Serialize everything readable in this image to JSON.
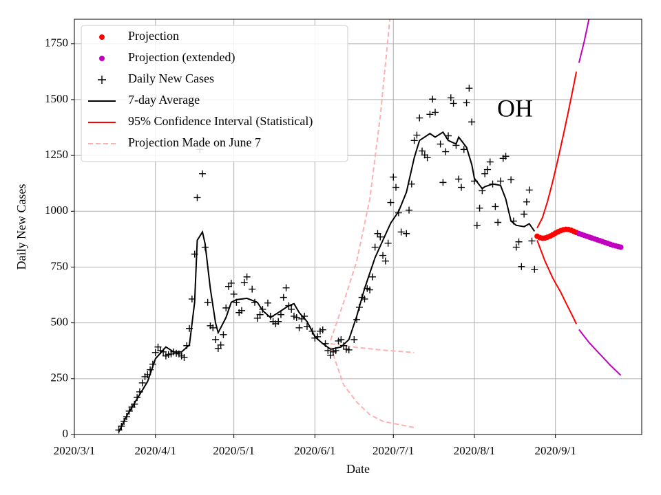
{
  "chart_data": {
    "type": "line",
    "annotation": "OH",
    "x_label": "Date",
    "y_label": "Daily New Cases",
    "xlim": [
      "2020-03-01",
      "2020-10-04"
    ],
    "xticks": [
      {
        "value": "2020-03-01",
        "label": "2020/3/1"
      },
      {
        "value": "2020-04-01",
        "label": "2020/4/1"
      },
      {
        "value": "2020-05-01",
        "label": "2020/5/1"
      },
      {
        "value": "2020-06-01",
        "label": "2020/6/1"
      },
      {
        "value": "2020-07-01",
        "label": "2020/7/1"
      },
      {
        "value": "2020-08-01",
        "label": "2020/8/1"
      },
      {
        "value": "2020-09-01",
        "label": "2020/9/1"
      }
    ],
    "ylim": [
      0,
      1860
    ],
    "yticks": [
      0,
      250,
      500,
      750,
      1000,
      1250,
      1500,
      1750
    ],
    "grid": true,
    "legend": "upper left",
    "series": [
      {
        "name": "Projection",
        "style": "dots",
        "color": "#ff0000",
        "x": [
          "2020-08-25",
          "2020-08-26",
          "2020-08-27",
          "2020-08-28",
          "2020-08-29",
          "2020-08-30",
          "2020-08-31",
          "2020-09-01",
          "2020-09-02",
          "2020-09-03",
          "2020-09-04",
          "2020-09-05",
          "2020-09-06",
          "2020-09-07",
          "2020-09-08",
          "2020-09-09"
        ],
        "values": [
          888,
          882,
          879,
          880,
          884,
          889,
          895,
          902,
          908,
          913,
          917,
          919,
          918,
          915,
          910,
          905
        ]
      },
      {
        "name": "Projection (extended)",
        "style": "dots",
        "color": "#bf00bf",
        "x": [
          "2020-09-10",
          "2020-09-11",
          "2020-09-12",
          "2020-09-13",
          "2020-09-14",
          "2020-09-15",
          "2020-09-16",
          "2020-09-17",
          "2020-09-18",
          "2020-09-19",
          "2020-09-20",
          "2020-09-21",
          "2020-09-22",
          "2020-09-23",
          "2020-09-24",
          "2020-09-25",
          "2020-09-26"
        ],
        "values": [
          900,
          896,
          892,
          888,
          884,
          880,
          876,
          872,
          868,
          864,
          860,
          856,
          852,
          848,
          845,
          842,
          839
        ]
      },
      {
        "name": "Daily New Cases",
        "style": "plus",
        "color": "#000000",
        "x": [
          "2020-03-18",
          "2020-03-19",
          "2020-03-20",
          "2020-03-21",
          "2020-03-22",
          "2020-03-23",
          "2020-03-24",
          "2020-03-25",
          "2020-03-26",
          "2020-03-27",
          "2020-03-28",
          "2020-03-29",
          "2020-03-30",
          "2020-03-31",
          "2020-04-01",
          "2020-04-02",
          "2020-04-03",
          "2020-04-04",
          "2020-04-05",
          "2020-04-06",
          "2020-04-07",
          "2020-04-08",
          "2020-04-09",
          "2020-04-10",
          "2020-04-11",
          "2020-04-12",
          "2020-04-13",
          "2020-04-14",
          "2020-04-15",
          "2020-04-16",
          "2020-04-17",
          "2020-04-18",
          "2020-04-19",
          "2020-04-20",
          "2020-04-21",
          "2020-04-22",
          "2020-04-23",
          "2020-04-24",
          "2020-04-25",
          "2020-04-26",
          "2020-04-27",
          "2020-04-28",
          "2020-04-29",
          "2020-04-30",
          "2020-05-01",
          "2020-05-02",
          "2020-05-03",
          "2020-05-04",
          "2020-05-05",
          "2020-05-06",
          "2020-05-08",
          "2020-05-09",
          "2020-05-10",
          "2020-05-11",
          "2020-05-12",
          "2020-05-14",
          "2020-05-15",
          "2020-05-16",
          "2020-05-17",
          "2020-05-18",
          "2020-05-19",
          "2020-05-20",
          "2020-05-21",
          "2020-05-22",
          "2020-05-23",
          "2020-05-24",
          "2020-05-25",
          "2020-05-26",
          "2020-05-27",
          "2020-05-28",
          "2020-05-29",
          "2020-05-31",
          "2020-06-01",
          "2020-06-02",
          "2020-06-03",
          "2020-06-04",
          "2020-06-05",
          "2020-06-06",
          "2020-06-07",
          "2020-06-08",
          "2020-06-09",
          "2020-06-10",
          "2020-06-11",
          "2020-06-12",
          "2020-06-13",
          "2020-06-14",
          "2020-06-16",
          "2020-06-17",
          "2020-06-18",
          "2020-06-19",
          "2020-06-20",
          "2020-06-21",
          "2020-06-22",
          "2020-06-23",
          "2020-06-24",
          "2020-06-25",
          "2020-06-26",
          "2020-06-27",
          "2020-06-28",
          "2020-06-29",
          "2020-06-30",
          "2020-07-01",
          "2020-07-02",
          "2020-07-03",
          "2020-07-04",
          "2020-07-06",
          "2020-07-07",
          "2020-07-08",
          "2020-07-09",
          "2020-07-10",
          "2020-07-11",
          "2020-07-12",
          "2020-07-13",
          "2020-07-14",
          "2020-07-15",
          "2020-07-16",
          "2020-07-17",
          "2020-07-19",
          "2020-07-20",
          "2020-07-21",
          "2020-07-22",
          "2020-07-23",
          "2020-07-24",
          "2020-07-25",
          "2020-07-26",
          "2020-07-27",
          "2020-07-28",
          "2020-07-29",
          "2020-07-30",
          "2020-07-31",
          "2020-08-01",
          "2020-08-02",
          "2020-08-03",
          "2020-08-04",
          "2020-08-05",
          "2020-08-06",
          "2020-08-07",
          "2020-08-08",
          "2020-08-09",
          "2020-08-10",
          "2020-08-11",
          "2020-08-12",
          "2020-08-13",
          "2020-08-15",
          "2020-08-16",
          "2020-08-17",
          "2020-08-18",
          "2020-08-19",
          "2020-08-20",
          "2020-08-21",
          "2020-08-22",
          "2020-08-23",
          "2020-08-24"
        ],
        "values": [
          20,
          37,
          59,
          80,
          105,
          123,
          136,
          166,
          191,
          231,
          259,
          268,
          290,
          315,
          367,
          392,
          376,
          370,
          352,
          358,
          361,
          370,
          364,
          361,
          352,
          345,
          398,
          475,
          607,
          808,
          1061,
          1277,
          1168,
          839,
          592,
          487,
          478,
          425,
          385,
          401,
          447,
          567,
          663,
          678,
          629,
          592,
          546,
          555,
          681,
          706,
          651,
          592,
          521,
          537,
          561,
          589,
          530,
          506,
          496,
          506,
          537,
          614,
          657,
          577,
          561,
          530,
          524,
          478,
          518,
          530,
          484,
          463,
          432,
          438,
          463,
          469,
          407,
          376,
          355,
          370,
          376,
          419,
          425,
          398,
          382,
          379,
          425,
          515,
          570,
          614,
          607,
          654,
          648,
          706,
          839,
          900,
          885,
          802,
          777,
          857,
          1039,
          1153,
          1107,
          993,
          907,
          900,
          1005,
          1122,
          1317,
          1341,
          1418,
          1270,
          1252,
          1240,
          1434,
          1502,
          1443,
          1301,
          1129,
          1267,
          1338,
          1508,
          1483,
          1295,
          1144,
          1107,
          1277,
          1486,
          1551,
          1400,
          1135,
          937,
          1014,
          1092,
          1168,
          1187,
          1221,
          1122,
          1021,
          950,
          1135,
          1237,
          1246,
          1141,
          956,
          839,
          863,
          752,
          987,
          1042,
          1095,
          867,
          740
        ]
      },
      {
        "name": "7-day Average",
        "style": "line",
        "color": "#000000",
        "x": [
          "2020-03-18",
          "2020-03-21",
          "2020-03-25",
          "2020-03-29",
          "2020-04-01",
          "2020-04-05",
          "2020-04-08",
          "2020-04-11",
          "2020-04-14",
          "2020-04-16",
          "2020-04-17",
          "2020-04-19",
          "2020-04-20",
          "2020-04-22",
          "2020-04-24",
          "2020-04-25",
          "2020-04-28",
          "2020-04-30",
          "2020-05-02",
          "2020-05-06",
          "2020-05-10",
          "2020-05-12",
          "2020-05-15",
          "2020-05-18",
          "2020-05-22",
          "2020-05-24",
          "2020-05-26",
          "2020-05-29",
          "2020-06-01",
          "2020-06-04",
          "2020-06-07",
          "2020-06-11",
          "2020-06-14",
          "2020-06-17",
          "2020-06-20",
          "2020-06-24",
          "2020-06-27",
          "2020-06-30",
          "2020-07-03",
          "2020-07-06",
          "2020-07-09",
          "2020-07-11",
          "2020-07-15",
          "2020-07-17",
          "2020-07-20",
          "2020-07-22",
          "2020-07-25",
          "2020-07-26",
          "2020-07-29",
          "2020-07-31",
          "2020-08-01",
          "2020-08-04",
          "2020-08-05",
          "2020-08-08",
          "2020-08-11",
          "2020-08-13",
          "2020-08-15",
          "2020-08-17",
          "2020-08-20",
          "2020-08-22",
          "2020-08-24"
        ],
        "values": [
          12,
          83,
          160,
          237,
          339,
          392,
          370,
          370,
          401,
          592,
          870,
          907,
          854,
          654,
          500,
          456,
          524,
          592,
          604,
          610,
          592,
          555,
          524,
          546,
          577,
          586,
          546,
          506,
          438,
          407,
          382,
          392,
          425,
          530,
          654,
          792,
          870,
          947,
          999,
          1085,
          1240,
          1317,
          1348,
          1332,
          1354,
          1317,
          1301,
          1332,
          1286,
          1209,
          1147,
          1101,
          1110,
          1122,
          1116,
          1055,
          956,
          937,
          931,
          944,
          910
        ]
      },
      {
        "name": "95% Confidence Interval (Statistical)",
        "style": "line",
        "color": "#ff0000",
        "x": [
          "2020-08-25",
          "2020-08-27",
          "2020-08-29",
          "2020-08-31",
          "2020-09-02",
          "2020-09-04",
          "2020-09-06",
          "2020-09-08",
          "2020-09-09"
        ],
        "values": [
          925,
          970,
          1045,
          1135,
          1235,
          1340,
          1450,
          1565,
          1625
        ]
      },
      {
        "name": "Projection Made on June 7",
        "style": "dashed",
        "color": "#ffb0b0",
        "x": [
          "2020-06-07",
          "2020-06-12",
          "2020-06-17",
          "2020-06-22",
          "2020-06-26",
          "2020-06-30"
        ],
        "values": [
          422,
          592,
          777,
          1055,
          1425,
          1900
        ]
      },
      {
        "style": "line",
        "color": "#ff0000",
        "x": [
          "2020-08-25",
          "2020-08-28",
          "2020-08-31",
          "2020-09-03",
          "2020-09-05",
          "2020-09-08",
          "2020-09-09"
        ],
        "values": [
          870,
          777,
          700,
          638,
          590,
          520,
          495
        ]
      },
      {
        "style": "line",
        "color": "#bf00bf",
        "x": [
          "2020-09-10",
          "2020-09-12",
          "2020-09-14"
        ],
        "values": [
          1665,
          1760,
          1870
        ]
      },
      {
        "style": "line",
        "color": "#bf00bf",
        "x": [
          "2020-09-10",
          "2020-09-14",
          "2020-09-18",
          "2020-09-22",
          "2020-09-26"
        ],
        "values": [
          470,
          410,
          360,
          310,
          265
        ]
      },
      {
        "style": "dashed",
        "color": "#ffb0b0",
        "x": [
          "2020-06-07",
          "2020-06-17",
          "2020-06-27",
          "2020-07-09"
        ],
        "values": [
          407,
          390,
          378,
          367
        ]
      },
      {
        "style": "dashed",
        "color": "#ffb0b0",
        "x": [
          "2020-06-07",
          "2020-06-12",
          "2020-06-17",
          "2020-06-22",
          "2020-06-27",
          "2020-07-09"
        ],
        "values": [
          392,
          222,
          145,
          89,
          59,
          31
        ]
      }
    ]
  }
}
